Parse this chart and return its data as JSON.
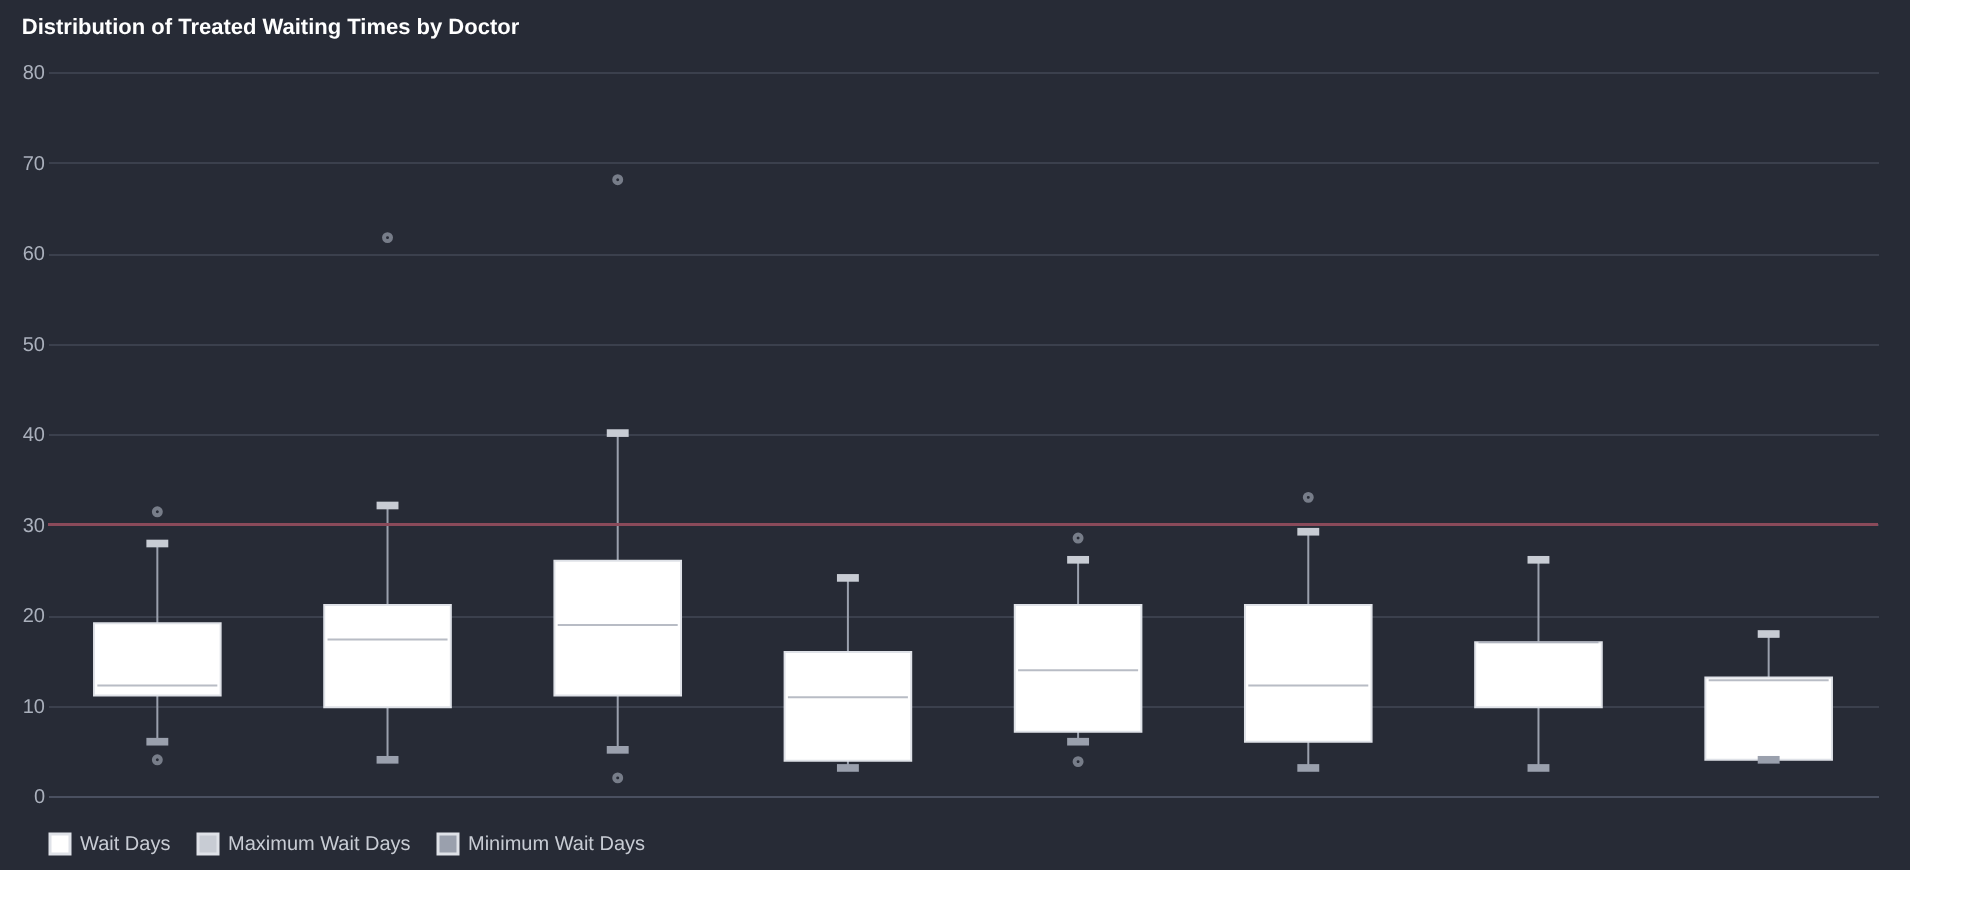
{
  "chart_data": {
    "type": "box",
    "title": "Distribution of Treated Waiting Times by Doctor",
    "categories": [
      null,
      null,
      null,
      null,
      null,
      null,
      null,
      null
    ],
    "ylim": [
      0,
      80
    ],
    "yticks": [
      0,
      10,
      20,
      30,
      40,
      50,
      60,
      70,
      80
    ],
    "grid": "y",
    "tick_labels": "y",
    "legend": "bottom left",
    "series": [
      {
        "name": "Wait Days",
        "color": "#ffffff",
        "boxes": [
          {
            "low": 6.0,
            "q1": 11.1,
            "median": 12.2,
            "q3": 19.1,
            "high": 27.9,
            "outliers": [
              31.4,
              4.0
            ]
          },
          {
            "low": 4.0,
            "q1": 9.8,
            "median": 17.3,
            "q3": 21.1,
            "high": 32.1,
            "outliers": [
              61.7
            ]
          },
          {
            "low": 5.1,
            "q1": 11.1,
            "median": 18.9,
            "q3": 26.0,
            "high": 40.1,
            "outliers": [
              68.1,
              2.0
            ]
          },
          {
            "low": 3.1,
            "q1": 3.9,
            "median": 10.9,
            "q3": 15.9,
            "high": 24.1
          },
          {
            "low": 6.0,
            "q1": 7.1,
            "median": 13.9,
            "q3": 21.1,
            "high": 26.1,
            "outliers": [
              28.5,
              3.8
            ]
          },
          {
            "low": 3.1,
            "q1": 6.0,
            "median": 12.2,
            "q3": 21.1,
            "high": 29.2,
            "outliers": [
              33.0
            ]
          },
          {
            "low": 3.1,
            "q1": 9.8,
            "median": 17.0,
            "q3": 17.0,
            "high": 26.1
          },
          {
            "low": 4.0,
            "q1": 4.0,
            "median": 12.8,
            "q3": 13.1,
            "high": 17.9
          }
        ]
      },
      {
        "name": "Maximum Wait Days",
        "type": "scatter",
        "color": "#c8ccd4",
        "values": [
          27.9,
          32.1,
          40.1,
          24.1,
          26.1,
          29.2,
          26.1,
          17.9
        ]
      },
      {
        "name": "Minimum Wait Days",
        "type": "scatter",
        "color": "#9aa0ad",
        "values": [
          6.0,
          4.0,
          5.1,
          3.1,
          6.0,
          3.1,
          3.1,
          4.0
        ]
      }
    ],
    "ref_lines": [
      {
        "axis": "y",
        "value": 30,
        "color": "#8a4a5a"
      }
    ]
  }
}
